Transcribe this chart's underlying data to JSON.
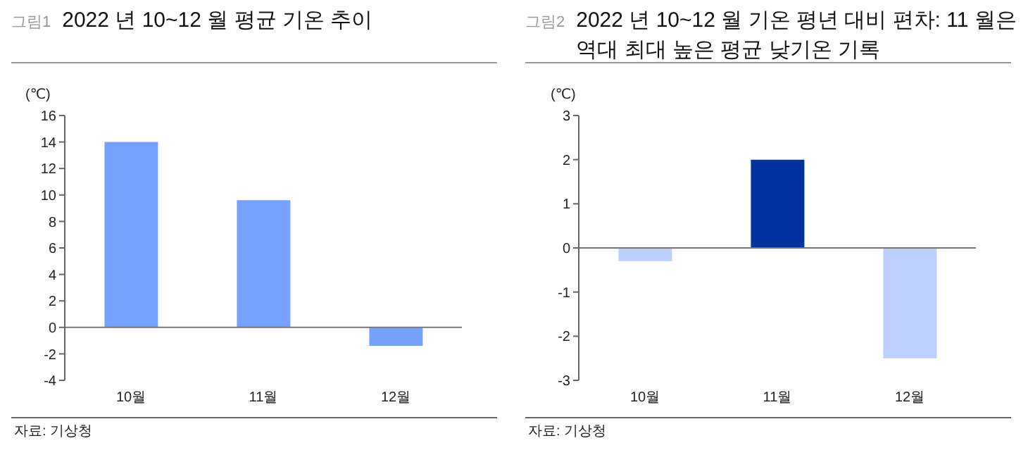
{
  "chart_data": [
    {
      "type": "bar",
      "title": "2022 년 10~12 월 평균 기온 추이",
      "ylabel": "(℃)",
      "categories": [
        "10월",
        "11월",
        "12월"
      ],
      "values": [
        14.0,
        9.6,
        -1.4
      ],
      "color": "#76a1fe",
      "ylim": [
        -4,
        16
      ],
      "yticks": [
        -4,
        -2,
        0,
        2,
        4,
        6,
        8,
        10,
        12,
        14,
        16
      ],
      "annotations": [
        "그림1",
        "자료: 기상청"
      ]
    },
    {
      "type": "bar",
      "title": "2022 년 10~12 월 기온 평년 대비 편차: 11 월은 역대 최대 높은 평균 낮기온 기록",
      "ylabel": "(℃)",
      "categories": [
        "10월",
        "11월",
        "12월"
      ],
      "values": [
        -0.3,
        2.0,
        -2.5
      ],
      "colors": [
        "#bccfff",
        "#0033a0",
        "#bccfff"
      ],
      "ylim": [
        -3,
        3
      ],
      "yticks": [
        -3,
        -2,
        -1,
        0,
        1,
        2,
        3
      ],
      "annotations": [
        "그림2",
        "자료: 기상청"
      ]
    }
  ]
}
